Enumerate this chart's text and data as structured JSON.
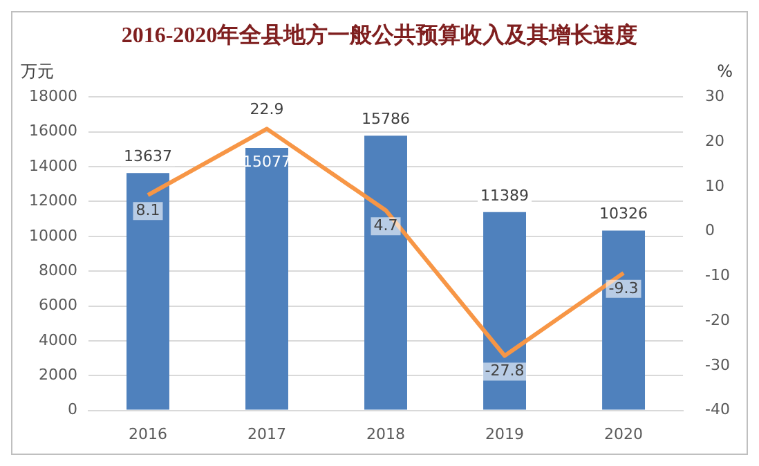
{
  "chart_data": {
    "type": "bar",
    "title": "2016-2020年全县地方一般公共预算收入及其增长速度",
    "ylabel": "万元",
    "y2label": "%",
    "categories": [
      "2016",
      "2017",
      "2018",
      "2019",
      "2020"
    ],
    "series": [
      {
        "color": "#4f81bd",
        "values": [
          13637,
          15077,
          15786,
          11389,
          10326
        ]
      },
      {
        "type": "line",
        "axis": "y2",
        "color": "#f79646",
        "values": [
          8.1,
          22.9,
          4.7,
          -27.8,
          -9.3
        ]
      }
    ],
    "ylim": [
      0,
      18000
    ],
    "yticks": [
      0,
      2000,
      4000,
      6000,
      8000,
      10000,
      12000,
      14000,
      16000,
      18000
    ],
    "y2lim": [
      -40,
      30
    ],
    "y2ticks": [
      -40,
      -30,
      -20,
      -10,
      0,
      10,
      20,
      30
    ],
    "grid": "y",
    "legend": false,
    "data_labels": true,
    "marker": "none",
    "line_style": "solid"
  }
}
